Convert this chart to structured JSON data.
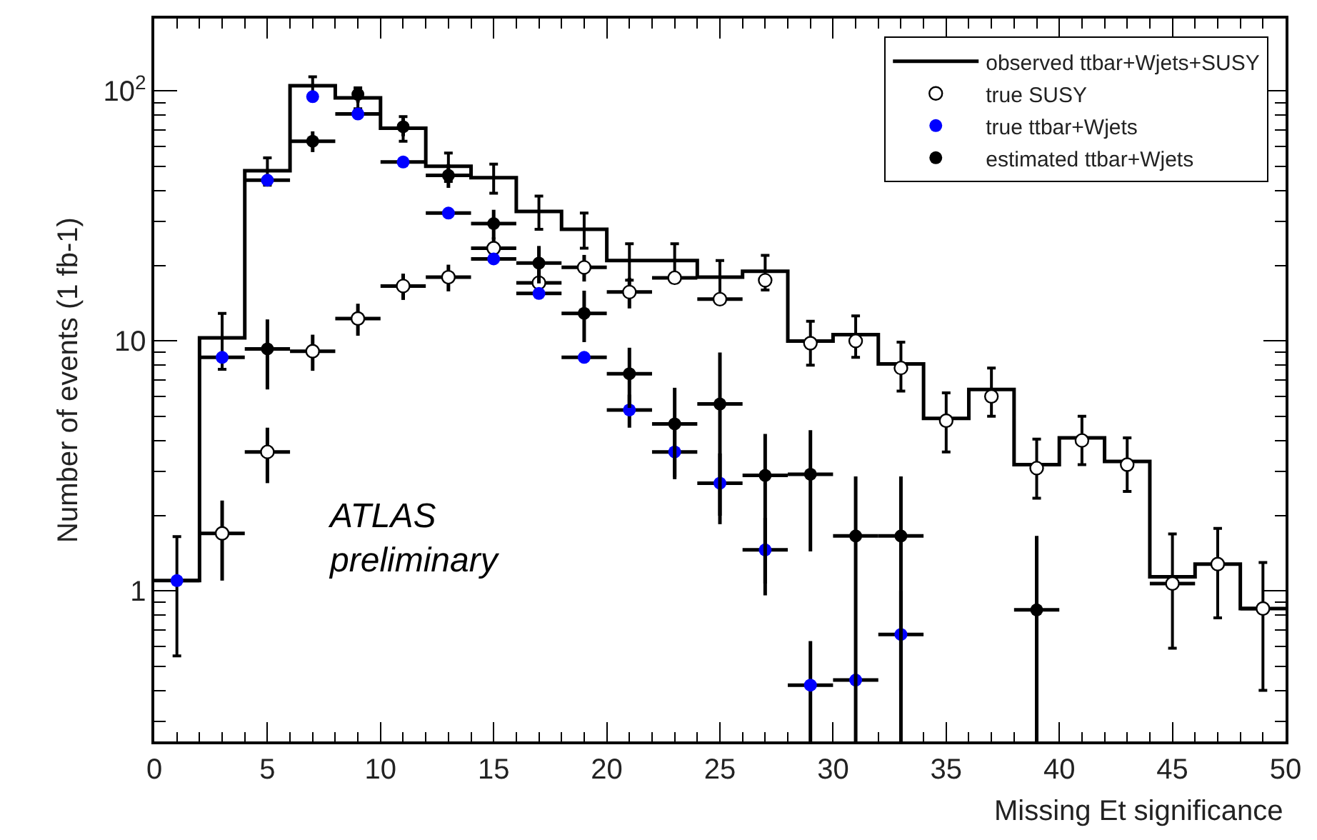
{
  "chart_data": {
    "type": "scatter",
    "xlabel": "Missing Et significance",
    "ylabel": "Number of events (1 fb-1)",
    "x": [
      1,
      3,
      5,
      7,
      9,
      11,
      13,
      15,
      17,
      19,
      21,
      23,
      25,
      27,
      29,
      31,
      33,
      35,
      37,
      39,
      41,
      43,
      45,
      47,
      49
    ],
    "series": [
      {
        "name": "observed ttbar+Wjets+SUSY",
        "type": "step",
        "color": "#000000",
        "values": [
          1.1,
          10.3,
          48,
          105,
          94,
          71,
          50,
          45,
          33,
          28,
          21,
          21,
          18,
          19,
          10,
          10.6,
          8.1,
          4.9,
          6.4,
          3.2,
          4.1,
          3.3,
          1.14,
          1.28,
          0.85
        ],
        "errors": [
          0.55,
          2.6,
          6,
          9,
          9,
          8,
          6.5,
          6,
          5,
          4.5,
          3.5,
          3.5,
          3,
          3,
          2,
          2,
          1.8,
          1.3,
          1.4,
          0.85,
          0.9,
          0.8,
          0.55,
          0.5,
          0.45
        ]
      },
      {
        "name": "true SUSY",
        "marker": "circle-open",
        "color": "#000000",
        "values": [
          null,
          1.7,
          3.6,
          9.1,
          12.3,
          16.6,
          18,
          23.5,
          17.1,
          19.7,
          15.7,
          17.9,
          14.7,
          17.5,
          9.8,
          10,
          7.8,
          4.8,
          6,
          3.1,
          4,
          3.2,
          1.07,
          1.28,
          0.85
        ],
        "errors": [
          null,
          0.6,
          0.9,
          1.5,
          1.8,
          2,
          2.2,
          2.5,
          2.2,
          2.4,
          2.2,
          null,
          null,
          null,
          null,
          null,
          null,
          null,
          null,
          null,
          null,
          null,
          null,
          null,
          null
        ],
        "xerrors": [
          null,
          1,
          1,
          1,
          1,
          1,
          1,
          1,
          1,
          1,
          1,
          1,
          1,
          null,
          null,
          null,
          null,
          null,
          null,
          null,
          null,
          null,
          1,
          null,
          1
        ]
      },
      {
        "name": "true ttbar+Wjets",
        "marker": "circle",
        "color": "#0000ff",
        "values": [
          1.1,
          8.6,
          44,
          95,
          81,
          52,
          32.5,
          21.3,
          15.5,
          8.6,
          5.3,
          3.6,
          2.7,
          1.46,
          0.42,
          0.44,
          0.67,
          null,
          null,
          null,
          null,
          null,
          null,
          null,
          null
        ],
        "errors": [
          null,
          null,
          null,
          null,
          null,
          null,
          null,
          null,
          null,
          null,
          0.8,
          0.8,
          0.85,
          0.5,
          [
            0.25,
            0.63
          ],
          null,
          [
            0.4,
            1.0
          ],
          null,
          null,
          null,
          null,
          null,
          null,
          null,
          null
        ],
        "xerrors": [
          1,
          1,
          1,
          null,
          1,
          1,
          1,
          1,
          1,
          1,
          1,
          1,
          1,
          1,
          1,
          1,
          1,
          null,
          null,
          null,
          null,
          null,
          null,
          null,
          null
        ]
      },
      {
        "name": "estimated ttbar+Wjets",
        "marker": "circle",
        "color": "#000000",
        "values": [
          null,
          null,
          9.3,
          63,
          97,
          72,
          46,
          29.5,
          20.5,
          12.9,
          7.4,
          4.66,
          5.6,
          2.9,
          2.93,
          1.66,
          1.66,
          null,
          null,
          0.84,
          null,
          null,
          null,
          null,
          null
        ],
        "errors": [
          null,
          null,
          2.9,
          6,
          7,
          6,
          5,
          4,
          3.5,
          3,
          2,
          [
            2.86,
            6.5
          ],
          [
            2.0,
            9
          ],
          [
            1.07,
            4.25
          ],
          [
            1.44,
            4.4
          ],
          [
            0.25,
            2.87
          ],
          [
            0.25,
            2.87
          ],
          null,
          null,
          [
            0.25,
            1.66
          ],
          null,
          null,
          null,
          null,
          null
        ],
        "xerrors": [
          null,
          null,
          1,
          1,
          null,
          null,
          1,
          1,
          1,
          1,
          1,
          1,
          1,
          1,
          1,
          1,
          1,
          null,
          null,
          1,
          null,
          null,
          null,
          null,
          null
        ]
      }
    ],
    "annotations": [
      "ATLAS\npreliminary"
    ],
    "xlim": [
      0,
      50
    ],
    "xticks": [
      0,
      5,
      10,
      15,
      20,
      25,
      30,
      35,
      40,
      45,
      50
    ],
    "ylim": [
      0.25,
      195
    ],
    "yticks": [
      1,
      10,
      {
        "value": 100,
        "label": "10$^{2}$"
      }
    ],
    "log": "y",
    "legend": "top right"
  }
}
